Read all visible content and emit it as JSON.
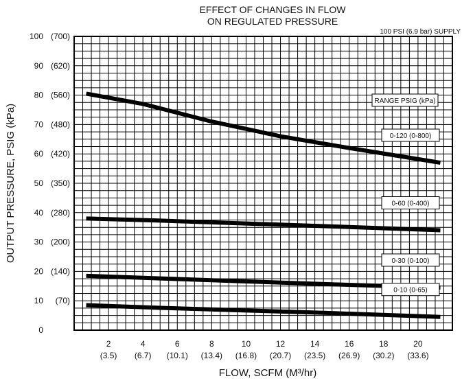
{
  "chart_data": {
    "type": "line",
    "title": [
      "EFFECT OF CHANGES IN FLOW",
      "ON REGULATED PRESSURE"
    ],
    "subtitle": "100 PSI (6.9 bar) SUPPLY",
    "xlabel": "FLOW, SCFM (M³/hr)",
    "ylabel": "OUTPUT PRESSURE, PSIG (kPa)",
    "xlim": [
      0,
      22
    ],
    "ylim": [
      0,
      100
    ],
    "grid": true,
    "x_ticks": [
      {
        "value": 2,
        "label": "2",
        "sub": "(3.5)"
      },
      {
        "value": 4,
        "label": "4",
        "sub": "(6.7)"
      },
      {
        "value": 6,
        "label": "6",
        "sub": "(10.1)"
      },
      {
        "value": 8,
        "label": "8",
        "sub": "(13.4)"
      },
      {
        "value": 10,
        "label": "10",
        "sub": "(16.8)"
      },
      {
        "value": 12,
        "label": "12",
        "sub": "(20.7)"
      },
      {
        "value": 14,
        "label": "14",
        "sub": "(23.5)"
      },
      {
        "value": 16,
        "label": "16",
        "sub": "(26.9)"
      },
      {
        "value": 18,
        "label": "18",
        "sub": "(30.2)"
      },
      {
        "value": 20,
        "label": "20",
        "sub": "(33.6)"
      }
    ],
    "y_ticks": [
      {
        "value": 100,
        "label": "100",
        "sub": "(700)"
      },
      {
        "value": 90,
        "label": "90",
        "sub": "(620)"
      },
      {
        "value": 80,
        "label": "80",
        "sub": "(560)"
      },
      {
        "value": 70,
        "label": "70",
        "sub": "(480)"
      },
      {
        "value": 60,
        "label": "60",
        "sub": "(420)"
      },
      {
        "value": 50,
        "label": "50",
        "sub": "(350)"
      },
      {
        "value": 40,
        "label": "40",
        "sub": "(280)"
      },
      {
        "value": 30,
        "label": "30",
        "sub": "(200)"
      },
      {
        "value": 20,
        "label": "20",
        "sub": "(140)"
      },
      {
        "value": 10,
        "label": "10",
        "sub": "(70)"
      },
      {
        "value": 0,
        "label": "0",
        "sub": ""
      }
    ],
    "legend_title": "RANGE PSIG (kPa)",
    "series": [
      {
        "name": "0-120 (0-800)",
        "x": [
          0.7,
          4,
          8,
          12,
          16,
          21.3
        ],
        "y": [
          80.5,
          77,
          71,
          66,
          62,
          57
        ]
      },
      {
        "name": "0-60 (0-400)",
        "x": [
          0.7,
          5,
          10,
          15,
          21.3
        ],
        "y": [
          38,
          37.3,
          36.3,
          35.3,
          34
        ]
      },
      {
        "name": "0-30 (0-100)",
        "x": [
          0.7,
          5,
          10,
          15,
          21.3
        ],
        "y": [
          18.5,
          17.6,
          16.6,
          15.6,
          14.5
        ]
      },
      {
        "name": "0-10 (0-65)",
        "x": [
          0.7,
          5,
          10,
          15,
          21.3
        ],
        "y": [
          8.5,
          7.6,
          6.7,
          5.8,
          4.5
        ]
      }
    ],
    "line_color": "#000000"
  }
}
